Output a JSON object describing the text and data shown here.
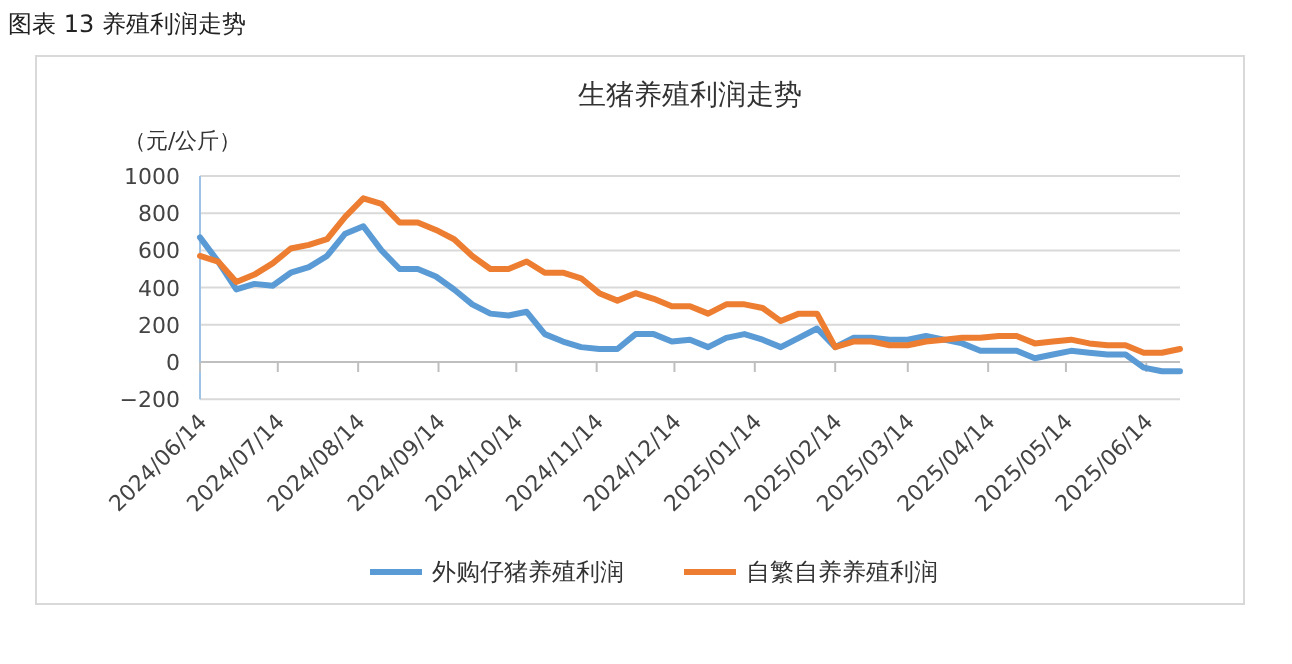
{
  "chart_data": {
    "type": "line",
    "title": "图表 13 养殖利润走势",
    "subtitle": "生猪养殖利润走势",
    "ylabel": "（元/公斤）",
    "x": [
      "2024-06-14",
      "2024-06-21",
      "2024-06-28",
      "2024-07-05",
      "2024-07-12",
      "2024-07-19",
      "2024-07-26",
      "2024-08-02",
      "2024-08-09",
      "2024-08-16",
      "2024-08-23",
      "2024-08-30",
      "2024-09-06",
      "2024-09-13",
      "2024-09-20",
      "2024-09-27",
      "2024-10-04",
      "2024-10-11",
      "2024-10-18",
      "2024-10-25",
      "2024-11-01",
      "2024-11-08",
      "2024-11-15",
      "2024-11-22",
      "2024-11-29",
      "2024-12-06",
      "2024-12-13",
      "2024-12-20",
      "2024-12-27",
      "2025-01-03",
      "2025-01-10",
      "2025-01-17",
      "2025-01-24",
      "2025-01-31",
      "2025-02-07",
      "2025-02-14",
      "2025-02-21",
      "2025-02-28",
      "2025-03-07",
      "2025-03-14",
      "2025-03-21",
      "2025-03-28",
      "2025-04-04",
      "2025-04-11",
      "2025-04-18",
      "2025-04-25",
      "2025-05-02",
      "2025-05-09",
      "2025-05-16",
      "2025-05-23",
      "2025-05-30",
      "2025-06-06",
      "2025-06-13",
      "2025-06-20",
      "2025-06-27"
    ],
    "series": [
      {
        "name": "外购仔猪养殖利润",
        "color": "#5b9bd5",
        "values": [
          670,
          540,
          390,
          420,
          410,
          480,
          510,
          570,
          690,
          730,
          600,
          500,
          500,
          460,
          390,
          310,
          260,
          250,
          270,
          150,
          110,
          80,
          70,
          70,
          150,
          150,
          110,
          120,
          80,
          130,
          150,
          120,
          80,
          130,
          180,
          80,
          130,
          130,
          120,
          120,
          140,
          120,
          100,
          60,
          60,
          60,
          20,
          40,
          60,
          50,
          40,
          40,
          -30,
          -50,
          -50
        ]
      },
      {
        "name": "自繁自养养殖利润",
        "color": "#ed7d31",
        "values": [
          570,
          540,
          430,
          470,
          530,
          610,
          630,
          660,
          780,
          880,
          850,
          750,
          750,
          710,
          660,
          570,
          500,
          500,
          540,
          480,
          480,
          450,
          370,
          330,
          370,
          340,
          300,
          300,
          260,
          310,
          310,
          290,
          220,
          260,
          260,
          80,
          110,
          110,
          90,
          90,
          110,
          120,
          130,
          130,
          140,
          140,
          100,
          110,
          120,
          100,
          90,
          90,
          50,
          50,
          70
        ]
      }
    ],
    "xlim": [
      "2024-06-14",
      "2025-06-27"
    ],
    "xticks": [
      {
        "value": "2024-06-14",
        "label": "2024/06/14"
      },
      {
        "value": "2024-07-14",
        "label": "2024/07/14"
      },
      {
        "value": "2024-08-14",
        "label": "2024/08/14"
      },
      {
        "value": "2024-09-14",
        "label": "2024/09/14"
      },
      {
        "value": "2024-10-14",
        "label": "2024/10/14"
      },
      {
        "value": "2024-11-14",
        "label": "2024/11/14"
      },
      {
        "value": "2024-12-14",
        "label": "2024/12/14"
      },
      {
        "value": "2025-01-14",
        "label": "2025/01/14"
      },
      {
        "value": "2025-02-14",
        "label": "2025/02/14"
      },
      {
        "value": "2025-03-14",
        "label": "2025/03/14"
      },
      {
        "value": "2025-04-14",
        "label": "2025/04/14"
      },
      {
        "value": "2025-05-14",
        "label": "2025/05/14"
      },
      {
        "value": "2025-06-14",
        "label": "2025/06/14"
      }
    ],
    "ylim": [
      -200,
      1000
    ],
    "yticks": [
      -200,
      0,
      200,
      400,
      600,
      800,
      1000
    ],
    "grid": "y",
    "legend": "bottom",
    "marker": "none",
    "line_style": "solid"
  }
}
